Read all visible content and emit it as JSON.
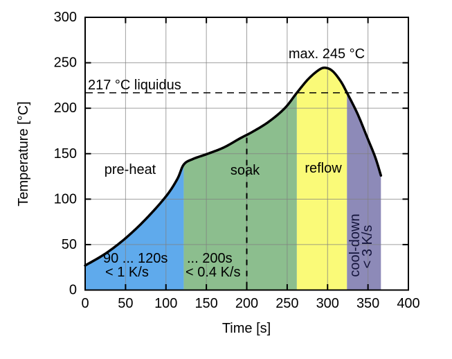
{
  "chart_data": {
    "type": "area",
    "title": "",
    "xlabel": "Time [s]",
    "ylabel": "Temperature [°C]",
    "xlim": [
      0,
      400
    ],
    "ylim": [
      0,
      300
    ],
    "x_ticks": [
      0,
      50,
      100,
      150,
      200,
      250,
      300,
      350,
      400
    ],
    "y_ticks": [
      0,
      50,
      100,
      150,
      200,
      250,
      300
    ],
    "grid": true,
    "curve": {
      "name": "temperature-profile",
      "points": [
        [
          0,
          27
        ],
        [
          25,
          40
        ],
        [
          50,
          57
        ],
        [
          75,
          78
        ],
        [
          100,
          103
        ],
        [
          114,
          122
        ],
        [
          122,
          138
        ],
        [
          133,
          144
        ],
        [
          152,
          150
        ],
        [
          172,
          157
        ],
        [
          192,
          167
        ],
        [
          207,
          174
        ],
        [
          227,
          185
        ],
        [
          247,
          200
        ],
        [
          262,
          217
        ],
        [
          276,
          232
        ],
        [
          289,
          242
        ],
        [
          297,
          244.5
        ],
        [
          306,
          241
        ],
        [
          316,
          230
        ],
        [
          324,
          217
        ],
        [
          337,
          194
        ],
        [
          349,
          168
        ],
        [
          359,
          146
        ],
        [
          366,
          126
        ]
      ]
    },
    "regions": [
      {
        "name": "pre-heat",
        "label": "pre-heat",
        "from": 0,
        "to": 122,
        "color": "#5faaec",
        "note_lines": [
          "90 ... 120s",
          "< 1 K/s"
        ]
      },
      {
        "name": "soak",
        "label": "soak",
        "from": 122,
        "to": 262,
        "color": "#8cbe8e",
        "note_lines": [
          "... 200s",
          "< 0.4 K/s"
        ]
      },
      {
        "name": "reflow",
        "label": "reflow",
        "from": 262,
        "to": 324,
        "color": "#fafa78",
        "note_lines": []
      },
      {
        "name": "cool-down",
        "label": "",
        "from": 324,
        "to": 366,
        "color": "#8d8ab8",
        "rotated_lines": [
          "cool-down",
          "< 3 K/s"
        ]
      }
    ],
    "liquidus": {
      "value": 217,
      "label": "217 °C liquidus"
    },
    "peak": {
      "t": 297,
      "T": 244.5,
      "label": "max. 245 °C"
    },
    "soak_duration_marker_t": 200
  },
  "colors": {
    "curve": "#000000",
    "grid": "#808080",
    "axis": "#000000",
    "background": "#ffffff",
    "preheat_fill": "#5faaec",
    "soak_fill": "#8cbe8e",
    "reflow_fill": "#fafa78",
    "cooldown_fill": "#8d8ab8"
  }
}
